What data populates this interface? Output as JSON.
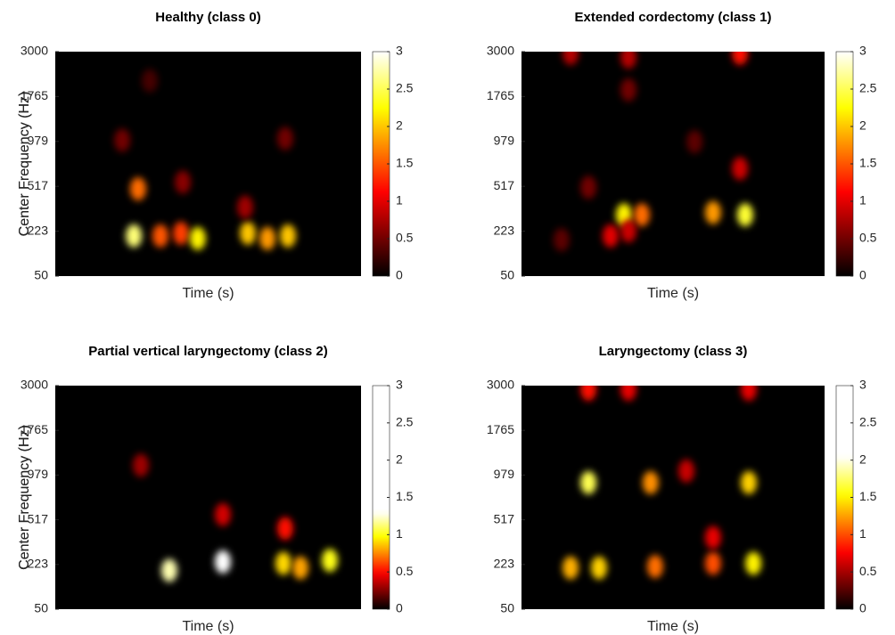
{
  "chart_data": [
    {
      "type": "heatmap",
      "title": "Healthy (class 0)",
      "xlabel": "Time (s)",
      "ylabel": "Center Frequency (Hz)",
      "xlim": [
        0,
        1
      ],
      "ylim": [
        50,
        3000
      ],
      "yticks": [
        50,
        223,
        517,
        979,
        1765,
        3000
      ],
      "clim": [
        0,
        3
      ],
      "cticks": [
        0,
        0.5,
        1,
        1.5,
        2,
        2.5,
        3
      ],
      "colormap": "hot",
      "colormap_max": 3,
      "hotspots": [
        {
          "x": 0.257,
          "y": 205,
          "value": 2.6
        },
        {
          "x": 0.344,
          "y": 205,
          "value": 1.5
        },
        {
          "x": 0.411,
          "y": 215,
          "value": 1.4
        },
        {
          "x": 0.466,
          "y": 195,
          "value": 2.2
        },
        {
          "x": 0.63,
          "y": 215,
          "value": 2.0
        },
        {
          "x": 0.694,
          "y": 195,
          "value": 1.8
        },
        {
          "x": 0.761,
          "y": 205,
          "value": 2.0
        },
        {
          "x": 0.271,
          "y": 500,
          "value": 1.6
        },
        {
          "x": 0.417,
          "y": 560,
          "value": 0.6
        },
        {
          "x": 0.219,
          "y": 1000,
          "value": 0.5
        },
        {
          "x": 0.752,
          "y": 1030,
          "value": 0.5
        },
        {
          "x": 0.621,
          "y": 380,
          "value": 0.7
        },
        {
          "x": 0.309,
          "y": 2200,
          "value": 0.3
        }
      ]
    },
    {
      "type": "heatmap",
      "title": "Extended cordectomy (class 1)",
      "xlabel": "Time (s)",
      "ylabel": "Center Frequency (Hz)",
      "xlim": [
        0,
        1
      ],
      "ylim": [
        50,
        3000
      ],
      "yticks": [
        50,
        223,
        517,
        979,
        1765,
        3000
      ],
      "clim": [
        0,
        3
      ],
      "cticks": [
        0,
        0.5,
        1,
        1.5,
        2,
        2.5,
        3
      ],
      "colormap": "hot",
      "colormap_max": 3,
      "hotspots": [
        {
          "x": 0.338,
          "y": 330,
          "value": 2.2
        },
        {
          "x": 0.397,
          "y": 330,
          "value": 1.6
        },
        {
          "x": 0.632,
          "y": 345,
          "value": 1.8
        },
        {
          "x": 0.738,
          "y": 330,
          "value": 2.4
        },
        {
          "x": 0.294,
          "y": 205,
          "value": 1.0
        },
        {
          "x": 0.353,
          "y": 225,
          "value": 0.9
        },
        {
          "x": 0.162,
          "y": 2950,
          "value": 0.8
        },
        {
          "x": 0.353,
          "y": 2850,
          "value": 0.8
        },
        {
          "x": 0.721,
          "y": 2950,
          "value": 1.2
        },
        {
          "x": 0.353,
          "y": 1950,
          "value": 0.5
        },
        {
          "x": 0.721,
          "y": 700,
          "value": 0.9
        },
        {
          "x": 0.221,
          "y": 510,
          "value": 0.5
        },
        {
          "x": 0.571,
          "y": 975,
          "value": 0.4
        },
        {
          "x": 0.132,
          "y": 190,
          "value": 0.4
        }
      ]
    },
    {
      "type": "heatmap",
      "title": "Partial vertical laryngectomy (class 2)",
      "xlabel": "Time (s)",
      "ylabel": "Center Frequency (Hz)",
      "xlim": [
        0,
        1
      ],
      "ylim": [
        50,
        3000
      ],
      "yticks": [
        50,
        223,
        517,
        979,
        1765,
        3000
      ],
      "clim": [
        0,
        3
      ],
      "cticks": [
        0,
        0.5,
        1,
        1.5,
        2,
        2.5,
        3
      ],
      "colormap": "hot",
      "colormap_max": 1.3,
      "hotspots": [
        {
          "x": 0.373,
          "y": 200,
          "value": 1.2
        },
        {
          "x": 0.548,
          "y": 240,
          "value": 1.3
        },
        {
          "x": 0.746,
          "y": 230,
          "value": 0.9
        },
        {
          "x": 0.802,
          "y": 210,
          "value": 0.8
        },
        {
          "x": 0.898,
          "y": 250,
          "value": 1.0
        },
        {
          "x": 0.548,
          "y": 570,
          "value": 0.4
        },
        {
          "x": 0.752,
          "y": 460,
          "value": 0.5
        },
        {
          "x": 0.28,
          "y": 1150,
          "value": 0.3
        }
      ]
    },
    {
      "type": "heatmap",
      "title": "Laryngectomy  (class 3)",
      "xlabel": "Time (s)",
      "ylabel": "Center Frequency (Hz)",
      "xlim": [
        0,
        1
      ],
      "ylim": [
        50,
        3000
      ],
      "yticks": [
        50,
        223,
        517,
        979,
        1765,
        3000
      ],
      "clim": [
        0,
        3
      ],
      "cticks": [
        0,
        0.5,
        1,
        1.5,
        2,
        2.5,
        3
      ],
      "colormap": "hot",
      "colormap_max": 2.05,
      "hotspots": [
        {
          "x": 0.221,
          "y": 900,
          "value": 1.7
        },
        {
          "x": 0.426,
          "y": 900,
          "value": 1.2
        },
        {
          "x": 0.75,
          "y": 900,
          "value": 1.4
        },
        {
          "x": 0.162,
          "y": 210,
          "value": 1.3
        },
        {
          "x": 0.256,
          "y": 210,
          "value": 1.4
        },
        {
          "x": 0.441,
          "y": 215,
          "value": 1.1
        },
        {
          "x": 0.632,
          "y": 230,
          "value": 1.0
        },
        {
          "x": 0.765,
          "y": 230,
          "value": 1.5
        },
        {
          "x": 0.221,
          "y": 2900,
          "value": 0.8
        },
        {
          "x": 0.75,
          "y": 2900,
          "value": 0.7
        },
        {
          "x": 0.353,
          "y": 2900,
          "value": 0.7
        },
        {
          "x": 0.632,
          "y": 400,
          "value": 0.7
        },
        {
          "x": 0.544,
          "y": 1050,
          "value": 0.6
        }
      ]
    }
  ]
}
